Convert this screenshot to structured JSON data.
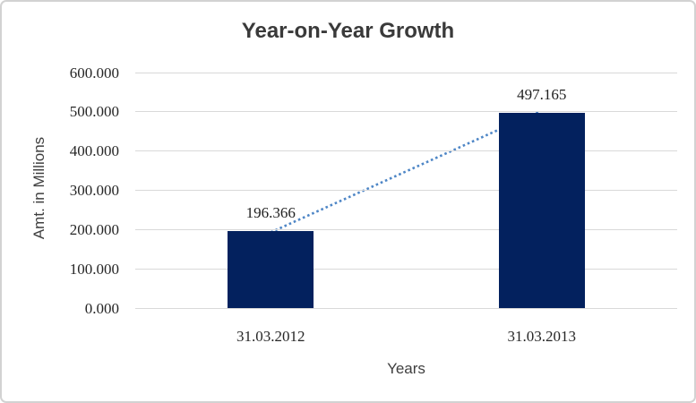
{
  "chart_data": {
    "type": "bar",
    "title": "Year-on-Year Growth",
    "xlabel": "Years",
    "ylabel": "Amt. in Millions",
    "categories": [
      "31.03.2012",
      "31.03.2013"
    ],
    "values": [
      196.366,
      497.165
    ],
    "data_labels": [
      "196.366",
      "497.165"
    ],
    "ylim": [
      0,
      600
    ],
    "ytick_values": [
      0,
      100,
      200,
      300,
      400,
      500,
      600
    ],
    "ytick_labels": [
      "0.000",
      "100.000",
      "200.000",
      "300.000",
      "400.000",
      "500.000",
      "600.000"
    ],
    "grid": true,
    "legend": "none",
    "colors": {
      "bar": "#03215e",
      "trendline": "#4e86c6",
      "gridline": "#d9d9d9",
      "title_text": "#3a3a3a",
      "tick_text": "#262626",
      "axis_title_text": "#3f3f3f",
      "frame_border": "#d2d2d2"
    },
    "trendline": {
      "style": "dotted",
      "from_category": "31.03.2012",
      "to_category": "31.03.2013"
    }
  }
}
